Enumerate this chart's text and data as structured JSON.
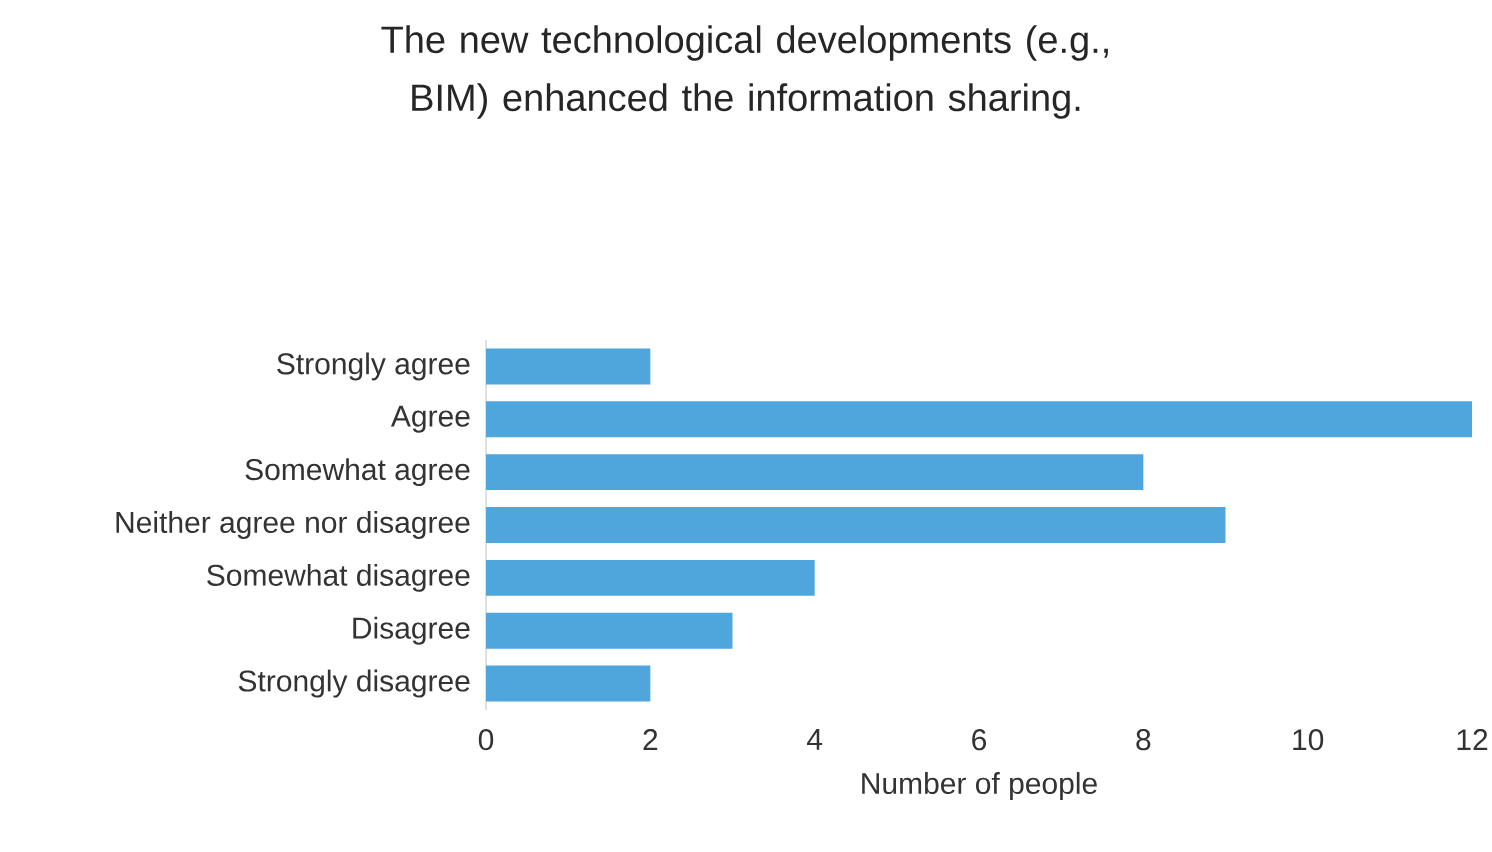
{
  "chart_data": {
    "type": "bar",
    "orientation": "horizontal",
    "title": "The new technological developments (e.g., BIM) enhanced the information sharing.",
    "xlabel": "Number of people",
    "categories": [
      "Strongly agree",
      "Agree",
      "Somewhat agree",
      "Neither agree nor disagree",
      "Somewhat disagree",
      "Disagree",
      "Strongly disagree"
    ],
    "values": [
      2,
      12,
      8,
      9,
      4,
      3,
      2
    ],
    "color": "#4ea6dc",
    "xlim": [
      0,
      12
    ],
    "xticks": [
      0,
      2,
      4,
      6,
      8,
      10,
      12
    ]
  }
}
